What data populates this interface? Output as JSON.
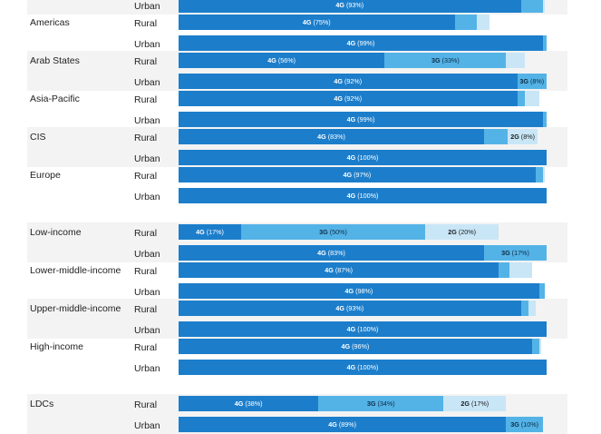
{
  "colors": {
    "4G": "#1c7ecb",
    "3G": "#54b3e6",
    "2G": "#c9e6f7",
    "shade": "#f3f3f3"
  },
  "chart_data": {
    "type": "bar",
    "orientation": "horizontal",
    "stacked": true,
    "xlim": [
      0,
      100
    ],
    "groups": [
      {
        "name": "",
        "rows": [
          {
            "area": "Urban",
            "segments": [
              {
                "tech": "4G",
                "value": 93,
                "label": "(93%)"
              },
              {
                "tech": "3G",
                "value": 6,
                "label": ""
              },
              {
                "tech": "2G",
                "value": 0.5,
                "label": ""
              }
            ]
          }
        ]
      },
      {
        "name": "Americas",
        "rows": [
          {
            "area": "Rural",
            "segments": [
              {
                "tech": "4G",
                "value": 75,
                "label": "(75%)"
              },
              {
                "tech": "3G",
                "value": 6,
                "label": ""
              },
              {
                "tech": "2G",
                "value": 3.5,
                "label": ""
              }
            ]
          },
          {
            "area": "Urban",
            "segments": [
              {
                "tech": "4G",
                "value": 99,
                "label": "(99%)"
              },
              {
                "tech": "3G",
                "value": 1,
                "label": ""
              }
            ]
          }
        ]
      },
      {
        "name": "Arab States",
        "rows": [
          {
            "area": "Rural",
            "segments": [
              {
                "tech": "4G",
                "value": 56,
                "label": "(56%)"
              },
              {
                "tech": "3G",
                "value": 33,
                "label": "(33%)"
              },
              {
                "tech": "2G",
                "value": 5,
                "label": ""
              }
            ]
          },
          {
            "area": "Urban",
            "segments": [
              {
                "tech": "4G",
                "value": 92,
                "label": "(92%)"
              },
              {
                "tech": "3G",
                "value": 8,
                "label": "(8%)"
              }
            ]
          }
        ]
      },
      {
        "name": "Asia-Pacific",
        "rows": [
          {
            "area": "Rural",
            "segments": [
              {
                "tech": "4G",
                "value": 92,
                "label": "(92%)"
              },
              {
                "tech": "3G",
                "value": 2,
                "label": ""
              },
              {
                "tech": "2G",
                "value": 4,
                "label": ""
              }
            ]
          },
          {
            "area": "Urban",
            "segments": [
              {
                "tech": "4G",
                "value": 99,
                "label": "(99%)"
              },
              {
                "tech": "3G",
                "value": 1,
                "label": ""
              }
            ]
          }
        ]
      },
      {
        "name": "CIS",
        "rows": [
          {
            "area": "Rural",
            "segments": [
              {
                "tech": "4G",
                "value": 83,
                "label": "(83%)"
              },
              {
                "tech": "3G",
                "value": 6.5,
                "label": ""
              },
              {
                "tech": "2G",
                "value": 8,
                "label": "(8%)"
              }
            ]
          },
          {
            "area": "Urban",
            "segments": [
              {
                "tech": "4G",
                "value": 100,
                "label": "(100%)"
              }
            ]
          }
        ]
      },
      {
        "name": "Europe",
        "rows": [
          {
            "area": "Rural",
            "segments": [
              {
                "tech": "4G",
                "value": 97,
                "label": "(97%)"
              },
              {
                "tech": "3G",
                "value": 2,
                "label": ""
              },
              {
                "tech": "2G",
                "value": 0.5,
                "label": ""
              }
            ]
          },
          {
            "area": "Urban",
            "segments": [
              {
                "tech": "4G",
                "value": 100,
                "label": "(100%)"
              }
            ]
          }
        ]
      },
      {
        "name": "Low-income",
        "rows": [
          {
            "area": "Rural",
            "segments": [
              {
                "tech": "4G",
                "value": 17,
                "label": "(17%)"
              },
              {
                "tech": "3G",
                "value": 50,
                "label": "(50%)"
              },
              {
                "tech": "2G",
                "value": 20,
                "label": "(20%)"
              }
            ]
          },
          {
            "area": "Urban",
            "segments": [
              {
                "tech": "4G",
                "value": 83,
                "label": "(83%)"
              },
              {
                "tech": "3G",
                "value": 17,
                "label": "(17%)"
              }
            ]
          }
        ]
      },
      {
        "name": "Lower-middle-income",
        "rows": [
          {
            "area": "Rural",
            "segments": [
              {
                "tech": "4G",
                "value": 87,
                "label": "(87%)"
              },
              {
                "tech": "3G",
                "value": 3,
                "label": ""
              },
              {
                "tech": "2G",
                "value": 6,
                "label": ""
              }
            ]
          },
          {
            "area": "Urban",
            "segments": [
              {
                "tech": "4G",
                "value": 98,
                "label": "(98%)"
              },
              {
                "tech": "3G",
                "value": 1.5,
                "label": ""
              }
            ]
          }
        ]
      },
      {
        "name": "Upper-middle-income",
        "rows": [
          {
            "area": "Rural",
            "segments": [
              {
                "tech": "4G",
                "value": 93,
                "label": "(93%)"
              },
              {
                "tech": "3G",
                "value": 2,
                "label": ""
              },
              {
                "tech": "2G",
                "value": 2,
                "label": ""
              }
            ]
          },
          {
            "area": "Urban",
            "segments": [
              {
                "tech": "4G",
                "value": 100,
                "label": "(100%)"
              }
            ]
          }
        ]
      },
      {
        "name": "High-income",
        "rows": [
          {
            "area": "Rural",
            "segments": [
              {
                "tech": "4G",
                "value": 96,
                "label": "(96%)"
              },
              {
                "tech": "3G",
                "value": 2,
                "label": ""
              },
              {
                "tech": "2G",
                "value": 0.5,
                "label": ""
              }
            ]
          },
          {
            "area": "Urban",
            "segments": [
              {
                "tech": "4G",
                "value": 100,
                "label": "(100%)"
              }
            ]
          }
        ]
      },
      {
        "name": "LDCs",
        "rows": [
          {
            "area": "Rural",
            "segments": [
              {
                "tech": "4G",
                "value": 38,
                "label": "(38%)"
              },
              {
                "tech": "3G",
                "value": 34,
                "label": "(34%)"
              },
              {
                "tech": "2G",
                "value": 17,
                "label": "(17%)"
              }
            ]
          },
          {
            "area": "Urban",
            "segments": [
              {
                "tech": "4G",
                "value": 89,
                "label": "(89%)"
              },
              {
                "tech": "3G",
                "value": 10,
                "label": "(10%)"
              }
            ]
          }
        ]
      }
    ]
  }
}
